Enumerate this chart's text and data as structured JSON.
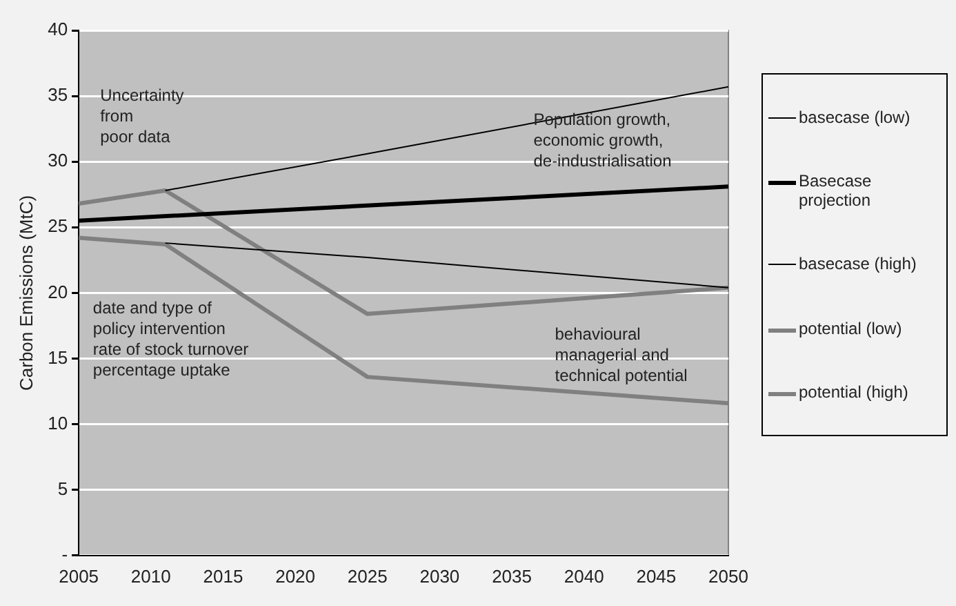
{
  "chart_data": {
    "type": "line",
    "ylabel": "Carbon Emissions (MtC)",
    "xlim": [
      2005,
      2050
    ],
    "xticks": [
      2005,
      2010,
      2015,
      2020,
      2025,
      2030,
      2035,
      2040,
      2045,
      2050
    ],
    "ylim": [
      0,
      40
    ],
    "yticks": [
      {
        "value": 0,
        "label": "-"
      },
      5,
      10,
      15,
      20,
      25,
      30,
      35,
      40
    ],
    "grid": "y",
    "legend": "right",
    "marker": "none",
    "line_style": "solid",
    "series": [
      {
        "name": "basecase (low)",
        "color": "#000000",
        "x": [
          2011,
          2025,
          2050
        ],
        "values": [
          27.8,
          30.6,
          35.7
        ]
      },
      {
        "name": "Basecase projection",
        "color": "#000000",
        "x": [
          2005,
          2050
        ],
        "values": [
          25.5,
          28.1
        ]
      },
      {
        "name": "basecase (high)",
        "color": "#000000",
        "x": [
          2011,
          2025,
          2050
        ],
        "values": [
          23.8,
          22.7,
          20.4
        ]
      },
      {
        "name": "potential (low)",
        "color": "#808080",
        "x": [
          2005,
          2011,
          2025,
          2050
        ],
        "values": [
          26.8,
          27.8,
          18.4,
          20.4
        ]
      },
      {
        "name": "potential (high)",
        "color": "#808080",
        "x": [
          2005,
          2011,
          2025,
          2050
        ],
        "values": [
          24.2,
          23.7,
          13.6,
          11.6
        ]
      }
    ],
    "annotations": [
      "Uncertainty\nfrom\npoor data",
      "Population growth,\neconomic growth,\nde-industrialisation",
      "date and type of\npolicy intervention\nrate of stock turnover\npercentage uptake",
      "behavioural\nmanagerial and\ntechnical potential"
    ]
  }
}
